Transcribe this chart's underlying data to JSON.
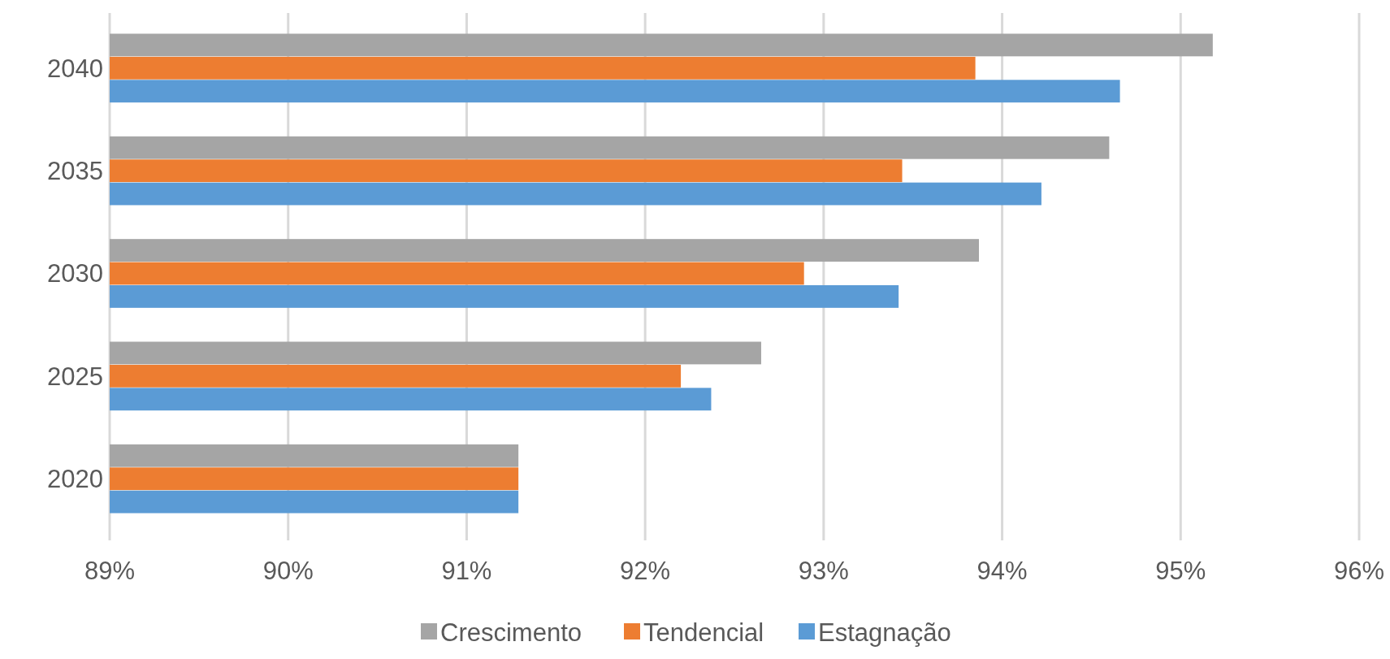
{
  "chart_data": {
    "type": "bar",
    "orientation": "horizontal",
    "categories": [
      "2040",
      "2035",
      "2030",
      "2025",
      "2020"
    ],
    "series": [
      {
        "name": "Crescimento",
        "color": "#a5a5a5",
        "values": [
          95.18,
          94.6,
          93.87,
          92.65,
          91.29
        ]
      },
      {
        "name": "Tendencial",
        "color": "#ed7d31",
        "values": [
          93.85,
          93.44,
          92.89,
          92.2,
          91.29
        ]
      },
      {
        "name": "Estagnação",
        "color": "#5b9bd5",
        "values": [
          94.66,
          94.22,
          93.42,
          92.37,
          91.29
        ]
      }
    ],
    "xlim": [
      89,
      96
    ],
    "xticks": [
      {
        "value": 89,
        "label": "89%"
      },
      {
        "value": 90,
        "label": "90%"
      },
      {
        "value": 91,
        "label": "91%"
      },
      {
        "value": 92,
        "label": "92%"
      },
      {
        "value": 93,
        "label": "93%"
      },
      {
        "value": 94,
        "label": "94%"
      },
      {
        "value": 95,
        "label": "95%"
      },
      {
        "value": 96,
        "label": "96%"
      }
    ],
    "grid": "x",
    "legend": "bottom"
  }
}
